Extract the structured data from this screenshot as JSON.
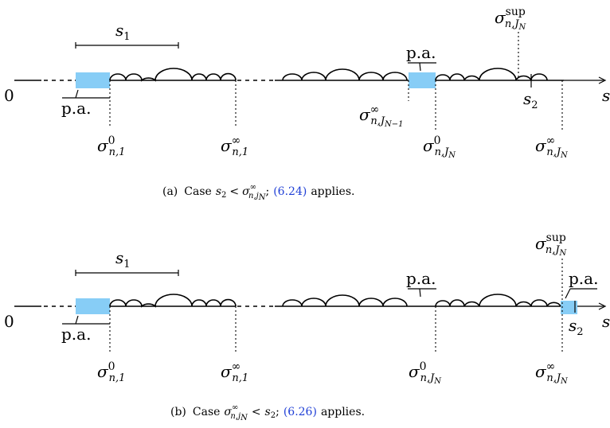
{
  "labels": {
    "zero": "0",
    "s": "s",
    "s1": "s",
    "s1_sub": "1",
    "s2": "s",
    "s2_sub": "2",
    "pa": "p.a.",
    "sigma": "σ",
    "sup": "sup",
    "inf": "∞",
    "zero_sup": "0",
    "n1": "n,1",
    "nJN": "n,J",
    "nJN_sub": "N",
    "nJN1": "n,J",
    "nJN1_sub": "N−1"
  },
  "captions": {
    "a": {
      "tag": "(a)",
      "case": "Case",
      "s2": "s",
      "s2_sub": "2",
      "lt": "<",
      "sigma": "σ",
      "sup": "∞",
      "sub": "n,j",
      "subsub": "N",
      "semi": ";",
      "ref": "(6.24)",
      "tail": "applies."
    },
    "b": {
      "tag": "(b)",
      "case": "Case",
      "sigma": "σ",
      "sup": "∞",
      "sub": "n,j",
      "subsub": "N",
      "lt": "<",
      "s2": "s",
      "s2_sub": "2",
      "semi": ";",
      "ref": "(6.26)",
      "tail": "applies."
    }
  },
  "colors": {
    "pa_fill": "#87cdf6",
    "ref_link": "#1f3fd6"
  }
}
